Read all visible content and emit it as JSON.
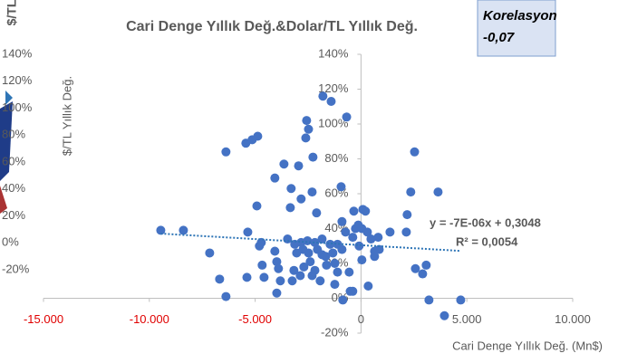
{
  "chart_data": {
    "type": "scatter",
    "title": "Cari Denge Yıllık Değ.&Dolar/TL Yıllık Değ.",
    "x_label": "Cari Denge Yıllık Değ. (Mn$)",
    "y_label": "$/TL Yıllık Değ.",
    "corner_label": "$/TL",
    "annotation": {
      "title": "Korelasyon",
      "value_label": "-0,07"
    },
    "trendline": {
      "label": "y = -7E-06x + 0,3048",
      "r2_label": "R² = 0,0054",
      "slope": -0.0007,
      "intercept": 30.48,
      "color": "#2e75b6"
    },
    "color": "#4472c4",
    "xlim": [
      -15000,
      10000
    ],
    "xticks": [
      {
        "value": -15000,
        "label": "-15.000"
      },
      {
        "value": -10000,
        "label": "-10.000"
      },
      {
        "value": -5000,
        "label": "-5.000"
      },
      0,
      {
        "value": 5000,
        "label": "5.000"
      },
      {
        "value": 10000,
        "label": "10.000"
      }
    ],
    "ylim": [
      -20,
      140
    ],
    "yticks": [
      {
        "value": -20,
        "label": "-20%"
      },
      {
        "value": 0,
        "label": "0%"
      },
      {
        "value": 20,
        "label": "20%"
      },
      {
        "value": 40,
        "label": "40%"
      },
      {
        "value": 60,
        "label": "60%"
      },
      {
        "value": 80,
        "label": "80%"
      },
      {
        "value": 100,
        "label": "100%"
      },
      {
        "value": 120,
        "label": "120%"
      },
      {
        "value": 140,
        "label": "140%"
      }
    ],
    "y2lim": [
      -20,
      140
    ],
    "y2ticks": [
      {
        "value": -20,
        "label": "-20%"
      },
      {
        "value": 0,
        "label": "0%"
      },
      {
        "value": 20,
        "label": "20%"
      },
      {
        "value": 40,
        "label": "40%"
      },
      {
        "value": 60,
        "label": "60%"
      },
      {
        "value": 80,
        "label": "80%"
      },
      {
        "value": 100,
        "label": "100%"
      },
      {
        "value": 120,
        "label": "120%"
      },
      {
        "value": 140,
        "label": "140%"
      }
    ],
    "x": [
      -9460,
      -8390,
      -7150,
      -6680,
      -6380,
      -6380,
      -5440,
      -5140,
      -4880,
      -5350,
      -4920,
      -4710,
      -4800,
      -4670,
      -4580,
      -5390,
      -4070,
      -4070,
      -3980,
      -3900,
      -3810,
      -3980,
      -3640,
      -3340,
      -3300,
      -3040,
      -2950,
      -2830,
      -2570,
      -2480,
      -2610,
      -2530,
      -2480,
      -2400,
      -2310,
      -2700,
      -2870,
      -3170,
      -3250,
      -2180,
      -2060,
      -2180,
      -1930,
      -2100,
      -2270,
      -2310,
      -1800,
      -1410,
      -680,
      -1460,
      -1330,
      -1240,
      -1110,
      -1670,
      -1840,
      -1110,
      -900,
      -560,
      -510,
      -390,
      -860,
      -1240,
      -940,
      -900,
      -730,
      -390,
      -340,
      -260,
      -130,
      40,
      90,
      210,
      -90,
      40,
      300,
      470,
      640,
      640,
      810,
      340,
      860,
      1370,
      2140,
      2180,
      2350,
      2530,
      2570,
      2910,
      3080,
      3210,
      3640,
      3940,
      4710,
      -1840,
      -1630,
      -3470,
      -3130,
      -2830,
      -2740
    ],
    "values": [
      39,
      39,
      26,
      11,
      1,
      84,
      89,
      91,
      93,
      38,
      53,
      32,
      30,
      19,
      12,
      12,
      69,
      27,
      21,
      17,
      10,
      3,
      77,
      52,
      63,
      26,
      76,
      57,
      102,
      97,
      92,
      33,
      26,
      21,
      13,
      18,
      13,
      16,
      10,
      32,
      28,
      16,
      10,
      49,
      81,
      61,
      116,
      113,
      104,
      31,
      26,
      20,
      15,
      24,
      34,
      31,
      28,
      15,
      4,
      4,
      -1,
      8,
      64,
      44,
      38,
      35,
      50,
      40,
      42,
      40,
      51,
      50,
      30,
      22,
      38,
      34,
      24,
      27,
      35,
      7,
      28,
      38,
      38,
      48,
      61,
      84,
      17,
      14,
      19,
      -1,
      61,
      -10,
      -1,
      25,
      19,
      34,
      31,
      32,
      28
    ]
  }
}
